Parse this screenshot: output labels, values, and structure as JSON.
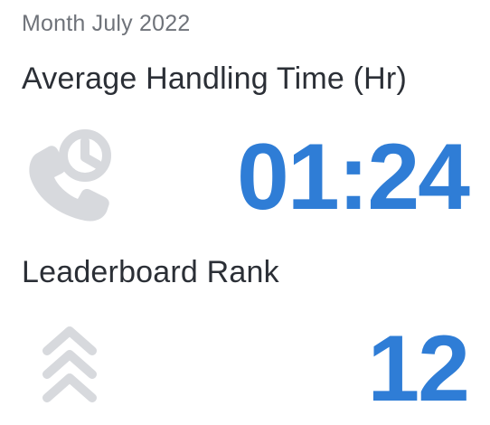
{
  "period_label": "Month July 2022",
  "metrics": {
    "average_handling_time": {
      "title": "Average Handling Time (Hr)",
      "value": "01:24",
      "icon": "phone-clock-icon"
    },
    "leaderboard_rank": {
      "title": "Leaderboard Rank",
      "value": "12",
      "icon": "triple-chevron-up-icon"
    }
  },
  "colors": {
    "value_accent": "#2f7dd6",
    "icon_gray": "#d7d9dd",
    "title_text": "#2b2f36",
    "period_text": "#6f737a"
  }
}
